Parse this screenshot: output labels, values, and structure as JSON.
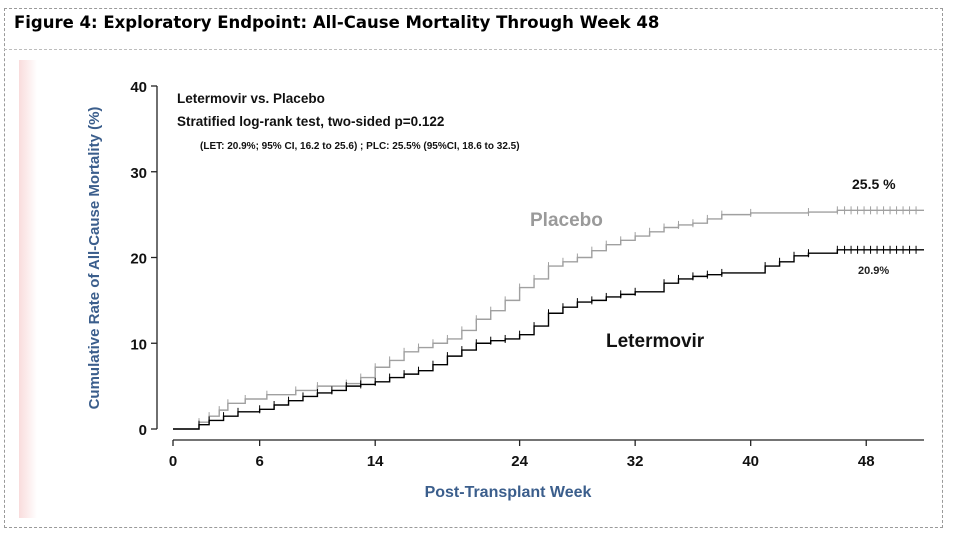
{
  "figure_title": "Figure 4: Exploratory Endpoint: All-Cause Mortality Through Week 48",
  "chart_data": {
    "type": "line",
    "title": "",
    "xlabel": "Post-Transplant Week",
    "ylabel": "Cumulative Rate of All-Cause Mortality (%)",
    "xlim": [
      0,
      52
    ],
    "ylim": [
      0,
      40
    ],
    "x_ticks": [
      0,
      6,
      14,
      24,
      32,
      40,
      48
    ],
    "y_ticks": [
      0,
      10,
      20,
      30,
      40
    ],
    "grid": false,
    "annotations": {
      "box_title": "Letermovir vs. Placebo",
      "test": "Stratified log-rank test, two-sided p=0.122",
      "ci": "(LET: 20.9%;  95% CI, 16.2  to 25.6) ; PLC:  25.5% (95%CI, 18.6 to 32.5)",
      "placebo_end": "25.5 %",
      "letermovir_end": "20.9%"
    },
    "series": [
      {
        "name": "Placebo",
        "color": "#a0a0a0",
        "step_x": [
          0,
          1.8,
          2.5,
          3.2,
          3.8,
          5,
          6.5,
          8.5,
          10,
          12,
          13,
          14,
          15,
          16,
          17,
          18,
          19,
          20,
          21,
          22,
          23,
          24,
          25,
          26,
          27,
          28,
          29,
          30,
          31,
          32,
          33,
          34,
          35,
          36,
          37,
          38,
          40,
          44,
          46,
          52
        ],
        "step_y": [
          0,
          0.8,
          1.5,
          2.2,
          3,
          3.5,
          4,
          4.5,
          5,
          5.3,
          6,
          7.2,
          8,
          9,
          9.5,
          10,
          10.5,
          11.5,
          12.8,
          13.8,
          15,
          16.5,
          17.5,
          19,
          19.5,
          20,
          20.8,
          21.5,
          22,
          22.5,
          23,
          23.5,
          23.8,
          24,
          24.5,
          25,
          25.2,
          25.3,
          25.5,
          25.5
        ],
        "end_label": "25.5 %"
      },
      {
        "name": "Letermovir",
        "color": "#000000",
        "step_x": [
          0,
          1.8,
          2.5,
          3.5,
          4.5,
          6,
          7,
          8,
          9,
          10,
          11,
          12,
          13,
          14,
          15,
          16,
          17,
          18,
          19,
          20,
          21,
          22,
          23,
          24,
          25,
          26,
          27,
          28,
          29,
          30,
          31,
          32,
          34,
          35,
          36,
          37,
          38,
          41,
          42,
          43,
          44,
          46,
          52
        ],
        "step_y": [
          0,
          0.5,
          1,
          1.5,
          2,
          2.3,
          2.8,
          3.3,
          3.8,
          4.2,
          4.5,
          5,
          5.2,
          5.5,
          6,
          6.4,
          6.8,
          7.5,
          8.5,
          9.2,
          10,
          10.3,
          10.5,
          11,
          12,
          13.5,
          14.2,
          14.8,
          15,
          15.4,
          15.7,
          16,
          17,
          17.5,
          17.8,
          18,
          18.2,
          19,
          19.5,
          20.2,
          20.5,
          20.9,
          20.9
        ],
        "end_label": "20.9%"
      }
    ],
    "series_labels": [
      "Placebo",
      "Letermovir"
    ]
  }
}
